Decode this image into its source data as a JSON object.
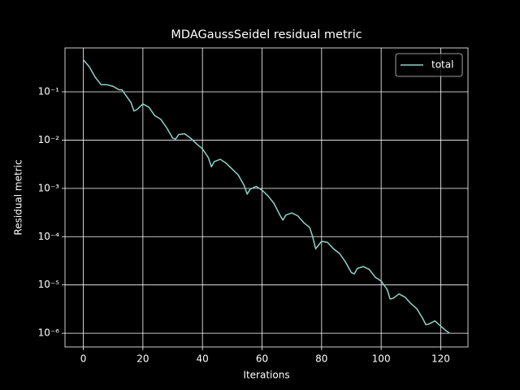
{
  "chart_data": {
    "type": "line",
    "title": "MDAGaussSeidel residual metric",
    "x_label": "Iterations",
    "y_label": "Residual metric",
    "log_y": true,
    "grid": true,
    "legend": "upper right",
    "x": [
      0,
      2,
      4,
      6,
      8,
      10,
      12,
      13,
      14,
      16,
      17,
      18,
      20,
      22,
      24,
      26,
      28,
      30,
      31,
      32,
      34,
      36,
      38,
      40,
      42,
      43,
      44,
      46,
      48,
      50,
      52,
      54,
      55,
      56,
      58,
      60,
      62,
      64,
      66,
      67,
      68,
      70,
      72,
      74,
      76,
      77,
      78,
      80,
      82,
      84,
      86,
      88,
      90,
      91,
      92,
      94,
      96,
      98,
      100,
      102,
      103,
      104,
      106,
      108,
      110,
      112,
      114,
      115,
      116,
      118,
      120,
      122,
      123
    ],
    "series": [
      {
        "name": "total",
        "color": "#8dd3c7",
        "values": [
          0.46,
          0.33,
          0.2,
          0.14,
          0.14,
          0.13,
          0.11,
          0.11,
          0.089,
          0.06,
          0.04,
          0.043,
          0.056,
          0.048,
          0.032,
          0.027,
          0.018,
          0.011,
          0.0105,
          0.013,
          0.0135,
          0.011,
          0.0084,
          0.0066,
          0.0043,
          0.0028,
          0.0036,
          0.004,
          0.0033,
          0.0025,
          0.0019,
          0.00115,
          0.00076,
          0.00096,
          0.0011,
          0.00092,
          0.0007,
          0.00049,
          0.00028,
          0.00022,
          0.00028,
          0.00031,
          0.00027,
          0.000195,
          0.000155,
          0.0001,
          5.6e-05,
          8e-05,
          7.6e-05,
          5.6e-05,
          4.5e-05,
          3e-05,
          1.8e-05,
          1.7e-05,
          2.2e-05,
          2.4e-05,
          2.1e-05,
          1.45e-05,
          1.2e-05,
          8.1e-06,
          5.1e-06,
          5.3e-06,
          6.5e-06,
          5.6e-06,
          4.1e-06,
          3.2e-06,
          2e-06,
          1.5e-06,
          1.55e-06,
          1.8e-06,
          1.4e-06,
          1.1e-06,
          1e-06
        ]
      }
    ],
    "xlim": [
      -6.15,
      129.15
    ],
    "xticks": [
      0,
      20,
      40,
      60,
      80,
      100,
      120
    ],
    "ylim": [
      5.2e-07,
      0.81
    ],
    "yticks": [
      {
        "value": 0.1,
        "label": "10⁻¹"
      },
      {
        "value": 0.01,
        "label": "10⁻²"
      },
      {
        "value": 0.001,
        "label": "10⁻³"
      },
      {
        "value": 0.0001,
        "label": "10⁻⁴"
      },
      {
        "value": 1e-05,
        "label": "10⁻⁵"
      },
      {
        "value": 1e-06,
        "label": "10⁻⁶"
      }
    ]
  }
}
